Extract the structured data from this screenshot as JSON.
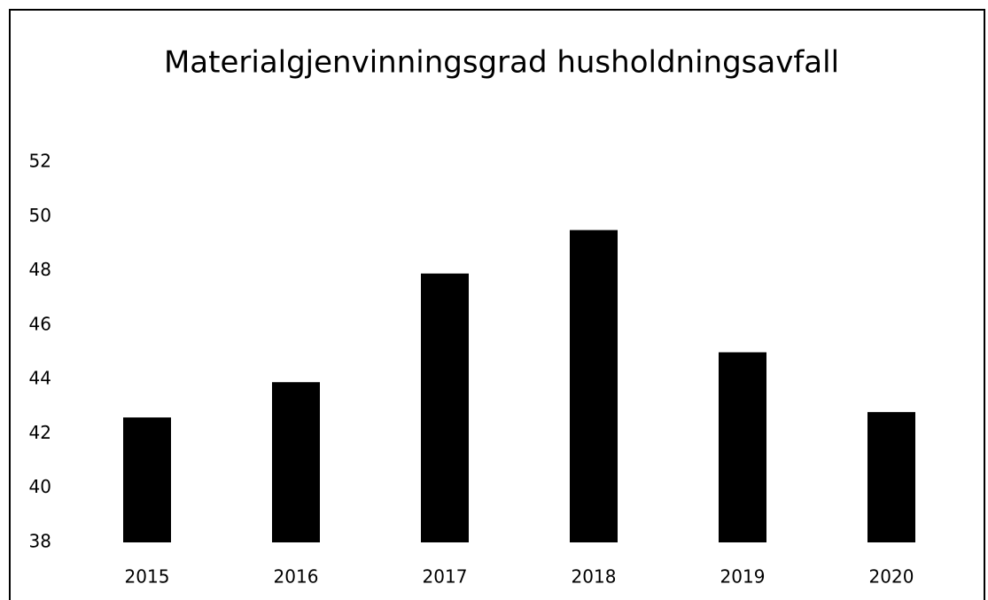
{
  "chart_data": {
    "type": "bar",
    "title": "Materialgjenvinningsgrad husholdningsavfall",
    "categories": [
      "2015",
      "2016",
      "2017",
      "2018",
      "2019",
      "2020"
    ],
    "values": [
      42.6,
      43.9,
      47.9,
      49.5,
      45.0,
      42.8
    ],
    "color": "#000000",
    "ylim": [
      38,
      52
    ],
    "yticks": [
      38,
      40,
      42,
      44,
      46,
      48,
      50,
      52
    ],
    "grid": false
  }
}
